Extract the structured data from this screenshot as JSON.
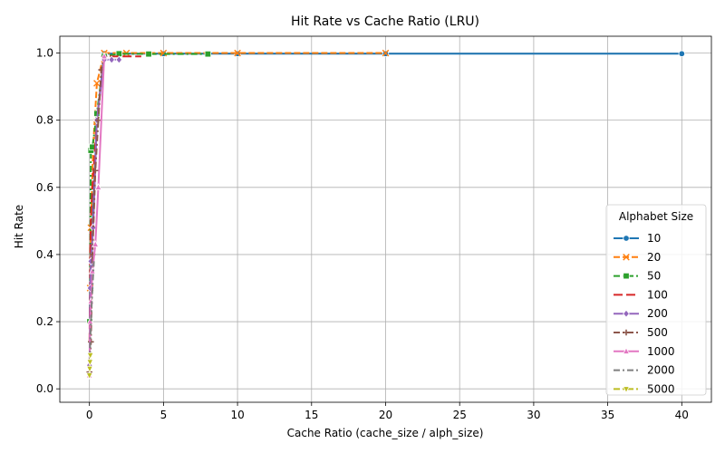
{
  "chart_data": {
    "type": "line",
    "title": "Hit Rate vs Cache Ratio (LRU)",
    "xlabel": "Cache Ratio (cache_size / alph_size)",
    "ylabel": "Hit Rate",
    "xlim": [
      -2,
      42
    ],
    "ylim": [
      -0.04,
      1.05
    ],
    "xticks": [
      0,
      5,
      10,
      15,
      20,
      25,
      30,
      35,
      40
    ],
    "yticks": [
      0.0,
      0.2,
      0.4,
      0.6,
      0.8,
      1.0
    ],
    "xtick_labels": [
      "0",
      "5",
      "10",
      "15",
      "20",
      "25",
      "30",
      "35",
      "40"
    ],
    "ytick_labels": [
      "0.0",
      "0.2",
      "0.4",
      "0.6",
      "0.8",
      "1.0"
    ],
    "grid": true,
    "legend": {
      "title": "Alphabet Size",
      "placement": "lower-right"
    },
    "series": [
      {
        "name": "10",
        "color": "#1f77b4",
        "marker": "circle",
        "dash": "solid",
        "x": [
          0.1,
          0.2,
          0.5,
          1.0,
          2.0,
          5.0,
          10.0,
          20.0,
          40.0
        ],
        "y": [
          0.3,
          0.48,
          0.8,
          0.998,
          0.998,
          0.998,
          0.998,
          0.998,
          0.998
        ]
      },
      {
        "name": "20",
        "color": "#ff7f0e",
        "marker": "x",
        "dash": "dash",
        "x": [
          0.05,
          0.1,
          0.25,
          0.5,
          1.0,
          2.5,
          5.0,
          10.0,
          20.0
        ],
        "y": [
          0.3,
          0.48,
          0.72,
          0.91,
          1.0,
          1.0,
          1.0,
          1.0,
          1.0
        ]
      },
      {
        "name": "50",
        "color": "#2ca02c",
        "marker": "square",
        "dash": "dashdot",
        "x": [
          0.02,
          0.1,
          0.2,
          0.5,
          1.0,
          2.0,
          4.0,
          8.0
        ],
        "y": [
          0.2,
          0.71,
          0.72,
          0.82,
          0.99,
          0.998,
          0.997,
          0.997
        ]
      },
      {
        "name": "100",
        "color": "#d62728",
        "marker": "none",
        "dash": "longdash",
        "x": [
          0.01,
          0.05,
          0.1,
          0.2,
          0.5,
          1.0,
          1.5,
          3.5
        ],
        "y": [
          0.14,
          0.4,
          0.51,
          0.6,
          0.8,
          0.99,
          0.99,
          0.99
        ]
      },
      {
        "name": "200",
        "color": "#9467bd",
        "marker": "diamond",
        "dash": "solid",
        "x": [
          0.005,
          0.05,
          0.1,
          0.25,
          0.5,
          1.0,
          1.5,
          2.0
        ],
        "y": [
          0.07,
          0.3,
          0.38,
          0.48,
          0.8,
          0.98,
          0.98,
          0.98
        ]
      },
      {
        "name": "500",
        "color": "#8c564b",
        "marker": "plus",
        "dash": "dashdot",
        "x": [
          0.002,
          0.1,
          0.2,
          0.4,
          0.6,
          0.8,
          1.0
        ],
        "y": [
          0.05,
          0.14,
          0.4,
          0.65,
          0.8,
          0.95,
          0.99
        ]
      },
      {
        "name": "1000",
        "color": "#e377c2",
        "marker": "triangle-up",
        "dash": "solid",
        "x": [
          0.001,
          0.05,
          0.1,
          0.2,
          0.4,
          0.6,
          1.0
        ],
        "y": [
          0.04,
          0.2,
          0.26,
          0.35,
          0.43,
          0.6,
          0.99
        ]
      },
      {
        "name": "2000",
        "color": "#7f7f7f",
        "marker": "none",
        "dash": "dashdot",
        "x": [
          0.0005,
          0.05,
          0.1,
          0.2,
          0.3
        ],
        "y": [
          0.04,
          0.14,
          0.2,
          0.3,
          0.38
        ]
      },
      {
        "name": "5000",
        "color": "#bcbd22",
        "marker": "triangle-down",
        "dash": "dashdot",
        "x": [
          0.0002,
          0.02,
          0.04,
          0.06
        ],
        "y": [
          0.04,
          0.06,
          0.08,
          0.1
        ]
      }
    ]
  }
}
